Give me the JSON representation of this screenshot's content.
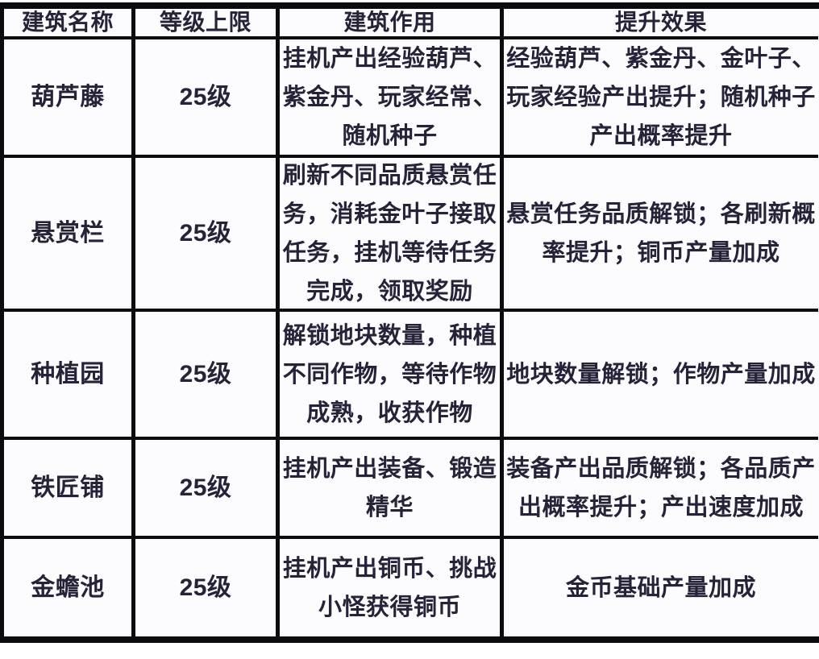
{
  "colors": {
    "border": "#0b0b10",
    "text": "#262238",
    "cell_background": "#fcfcfe"
  },
  "table": {
    "columns": [
      {
        "label": "建筑名称"
      },
      {
        "label": "等级上限"
      },
      {
        "label": "建筑作用"
      },
      {
        "label": "提升效果"
      }
    ],
    "rows": [
      {
        "name": "葫芦藤",
        "level_cap": "25级",
        "function": "挂机产出经验葫芦、\n紫金丹、玩家经常、\n随机种子",
        "effect": "经验葫芦、紫金丹、金叶子、\n玩家经验产出提升；随机种子\n产出概率提升"
      },
      {
        "name": "悬赏栏",
        "level_cap": "25级",
        "function": "刷新不同品质悬赏任\n务，消耗金叶子接取\n任务，挂机等待任务\n完成，领取奖励",
        "effect": "悬赏任务品质解锁；各刷新概\n率提升；铜币产量加成"
      },
      {
        "name": "种植园",
        "level_cap": "25级",
        "function": "解锁地块数量，种植\n不同作物，等待作物\n成熟，收获作物",
        "effect": "地块数量解锁；作物产量加成"
      },
      {
        "name": "铁匠铺",
        "level_cap": "25级",
        "function": "挂机产出装备、锻造\n精华",
        "effect": "装备产出品质解锁；各品质产\n出概率提升；产出速度加成"
      },
      {
        "name": "金蟾池",
        "level_cap": "25级",
        "function": "挂机产出铜币、挑战\n小怪获得铜币",
        "effect": "金币基础产量加成"
      }
    ]
  }
}
